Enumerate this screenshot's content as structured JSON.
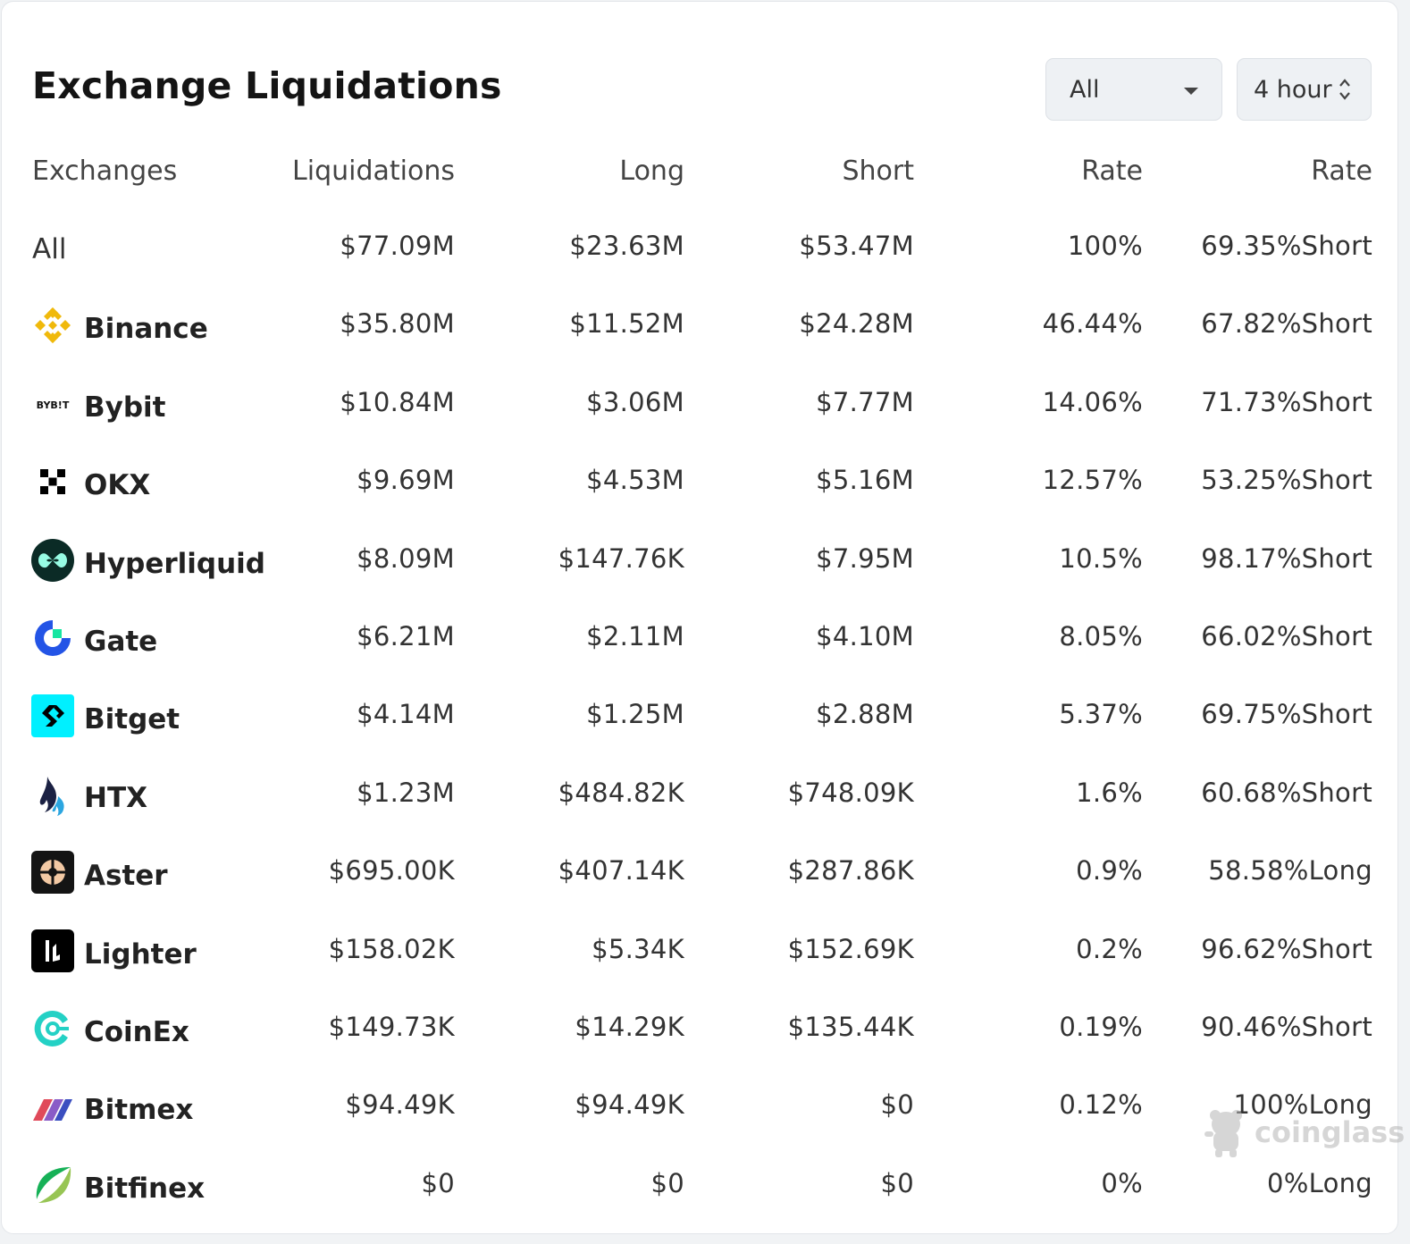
{
  "title": "Exchange Liquidations",
  "filters": {
    "exchange": "All",
    "period": "4 hour"
  },
  "columns": [
    "Exchanges",
    "Liquidations",
    "Long",
    "Short",
    "Rate",
    "Rate"
  ],
  "rows": [
    {
      "name": "All",
      "liquidations": "$77.09M",
      "long": "$23.63M",
      "short": "$53.47M",
      "rate": "100%",
      "ls": "69.35%Short"
    },
    {
      "name": "Binance",
      "liquidations": "$35.80M",
      "long": "$11.52M",
      "short": "$24.28M",
      "rate": "46.44%",
      "ls": "67.82%Short"
    },
    {
      "name": "Bybit",
      "logo_text": "BYB!T",
      "liquidations": "$10.84M",
      "long": "$3.06M",
      "short": "$7.77M",
      "rate": "14.06%",
      "ls": "71.73%Short"
    },
    {
      "name": "OKX",
      "liquidations": "$9.69M",
      "long": "$4.53M",
      "short": "$5.16M",
      "rate": "12.57%",
      "ls": "53.25%Short"
    },
    {
      "name": "Hyperliquid",
      "liquidations": "$8.09M",
      "long": "$147.76K",
      "short": "$7.95M",
      "rate": "10.5%",
      "ls": "98.17%Short"
    },
    {
      "name": "Gate",
      "liquidations": "$6.21M",
      "long": "$2.11M",
      "short": "$4.10M",
      "rate": "8.05%",
      "ls": "66.02%Short"
    },
    {
      "name": "Bitget",
      "liquidations": "$4.14M",
      "long": "$1.25M",
      "short": "$2.88M",
      "rate": "5.37%",
      "ls": "69.75%Short"
    },
    {
      "name": "HTX",
      "liquidations": "$1.23M",
      "long": "$484.82K",
      "short": "$748.09K",
      "rate": "1.6%",
      "ls": "60.68%Short"
    },
    {
      "name": "Aster",
      "liquidations": "$695.00K",
      "long": "$407.14K",
      "short": "$287.86K",
      "rate": "0.9%",
      "ls": "58.58%Long"
    },
    {
      "name": "Lighter",
      "liquidations": "$158.02K",
      "long": "$5.34K",
      "short": "$152.69K",
      "rate": "0.2%",
      "ls": "96.62%Short"
    },
    {
      "name": "CoinEx",
      "liquidations": "$149.73K",
      "long": "$14.29K",
      "short": "$135.44K",
      "rate": "0.19%",
      "ls": "90.46%Short"
    },
    {
      "name": "Bitmex",
      "liquidations": "$94.49K",
      "long": "$94.49K",
      "short": "$0",
      "rate": "0.12%",
      "ls": "100%Long"
    },
    {
      "name": "Bitfinex",
      "liquidations": "$0",
      "long": "$0",
      "short": "$0",
      "rate": "0%",
      "ls": "0%Long"
    }
  ],
  "colors": {
    "short": "#d63548",
    "long": "#17a085"
  },
  "watermark": "coinglass"
}
